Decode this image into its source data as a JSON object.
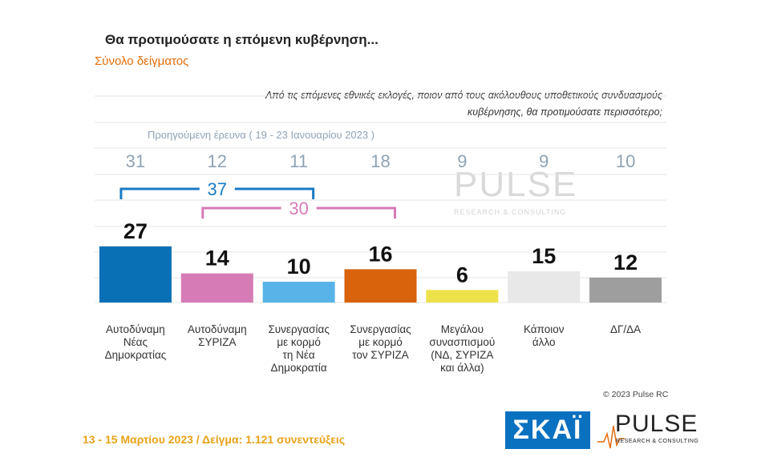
{
  "header": {
    "title": "Θα προτιμούσατε η επόμενη κυβέρνηση...",
    "subtitle": "Σύνολο δείγματος",
    "question_line1": "Από τις επόμενες εθνικές εκλογές, ποιον από τους ακόλουθους υποθετικούς συνδυασμούς",
    "question_line2": "κυβέρνησης, θα προτιμούσατε περισσότερο;"
  },
  "previous_survey_label": "Προηγούμενη έρευνα  ( 19 - 23 Ιανουαρίου  2023 )",
  "chart_data": {
    "type": "bar",
    "title": "Θα προτιμούσατε η επόμενη κυβέρνηση...",
    "categories": [
      [
        "Αυτοδύναμη",
        "Νέας",
        "Δημοκρατίας"
      ],
      [
        "Αυτοδύναμη",
        "ΣΥΡΙΖΑ"
      ],
      [
        "Συνεργασίας",
        "με κορμό",
        "τη Νέα",
        "Δημοκρατία"
      ],
      [
        "Συνεργασίας",
        "με κορμό",
        "τον ΣΥΡΙΖΑ"
      ],
      [
        "Μεγάλου",
        "συνασπισμού",
        "(ΝΔ, ΣΥΡΙΖΑ",
        "και άλλα)"
      ],
      [
        "Κάποιον",
        "άλλο"
      ],
      [
        "ΔΓ/ΔΑ"
      ]
    ],
    "values": [
      27,
      14,
      10,
      16,
      6,
      15,
      12
    ],
    "previous_values": [
      31,
      12,
      11,
      18,
      9,
      9,
      10
    ],
    "colors": [
      "#0a70b6",
      "#d67bb5",
      "#58b4e8",
      "#d9620c",
      "#eee24a",
      "#e8e8e8",
      "#9e9e9e"
    ],
    "ylim": [
      0,
      30
    ],
    "groups": [
      {
        "label": "37",
        "members": [
          0,
          2
        ],
        "color": "#1a7ac4"
      },
      {
        "label": "30",
        "members": [
          1,
          3
        ],
        "color": "#d67bb5"
      }
    ],
    "grid": true
  },
  "watermark": {
    "word": "PULSE",
    "tagline": "RESEARCH & CONSULTING"
  },
  "copyright": "© 2023 Pulse RC",
  "footer": "13 - 15  Μαρτίου  2023  /  Δείγμα:  1.121 συνεντεύξεις",
  "logos": {
    "skai": "ΣΚΑΪ",
    "pulse_word": "PULSE",
    "pulse_tagline": "RESEARCH & CONSULTING"
  }
}
